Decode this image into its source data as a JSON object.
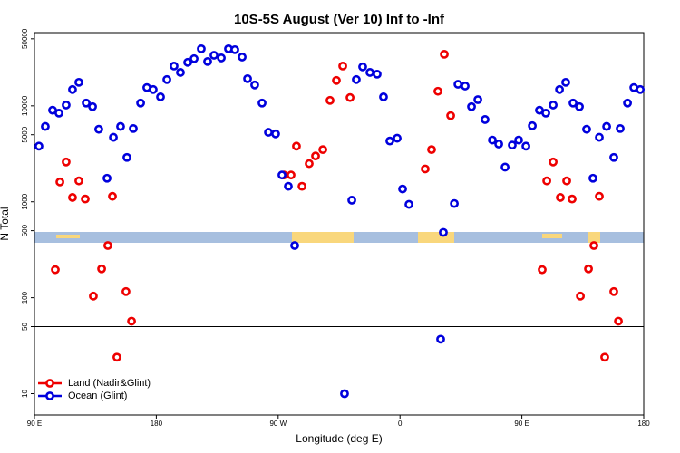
{
  "chart_data": {
    "type": "scatter",
    "title": "10S-5S August (Ver 10)   Inf to -Inf",
    "x_label": "Longitude (deg E)",
    "y_label": "N Total",
    "log_y": true,
    "xlim": [
      90,
      540
    ],
    "ylim": [
      6,
      58000
    ],
    "xticks": [
      {
        "value": 90,
        "label": "90 E"
      },
      180,
      {
        "value": 270,
        "label": "90 W"
      },
      0,
      {
        "value": 450,
        "label": "90 E"
      },
      {
        "value": 540,
        "label": "180"
      }
    ],
    "yticks": [
      10,
      50,
      100,
      500,
      1000,
      5000,
      10000,
      50000
    ],
    "reference_line": 50,
    "legend": "bottom-left",
    "series": [
      {
        "name": "Land (Nadir&Glint)",
        "color": "#ee0000",
        "x": [
          105.4,
          108.8,
          113.4,
          118.1,
          122.8,
          127.5,
          133.5,
          139.6,
          144.2,
          147.6,
          150.9,
          157.6,
          161.7,
          274.2,
          279.5,
          283.5,
          287.6,
          292.9,
          297.6,
          303.0,
          308.3,
          313.0,
          317.7,
          323.1,
          378.6,
          383.3,
          388.0,
          392.7,
          397.4,
          465.0,
          468.4,
          473.1,
          478.4,
          483.1,
          487.1,
          493.2,
          499.2,
          503.2,
          507.2,
          511.2,
          517.9,
          521.3
        ],
        "values": [
          196,
          1610,
          2600,
          1110,
          1650,
          1070,
          104,
          200,
          350,
          1140,
          24,
          116,
          57,
          1900,
          1900,
          3800,
          1450,
          2500,
          3000,
          3500,
          11400,
          18400,
          26000,
          12200,
          2200,
          3500,
          14200,
          34500,
          7900,
          196,
          1650,
          2600,
          1110,
          1650,
          1070,
          104,
          200,
          350,
          1140,
          24,
          116,
          57
        ]
      },
      {
        "name": "Ocean (Glint)",
        "color": "#0000dd",
        "x": [
          93.3,
          98.0,
          103.4,
          108.1,
          113.4,
          118.1,
          122.8,
          128.2,
          132.9,
          137.5,
          143.6,
          148.3,
          153.6,
          158.3,
          163.0,
          168.4,
          173.0,
          177.7,
          183.1,
          187.8,
          193.1,
          197.8,
          203.2,
          207.9,
          213.2,
          217.9,
          222.6,
          228.0,
          233.3,
          238.0,
          243.4,
          247.4,
          252.7,
          258.1,
          262.8,
          268.1,
          272.8,
          277.5,
          282.2,
          319.0,
          324.4,
          327.7,
          332.4,
          337.8,
          343.1,
          347.8,
          352.5,
          357.9,
          361.9,
          366.6,
          390.0,
          392.0,
          400.1,
          402.8,
          408.1,
          412.8,
          417.5,
          422.8,
          428.2,
          432.9,
          437.6,
          442.9,
          447.6,
          453.0,
          457.7,
          463.0,
          467.7,
          473.1,
          477.8,
          482.4,
          487.8,
          492.5,
          497.8,
          502.5,
          507.2,
          512.6,
          517.9,
          522.6,
          528.0,
          532.7,
          537.4
        ],
        "values": [
          3800,
          6100,
          9000,
          8400,
          10200,
          14800,
          17600,
          10700,
          9800,
          5700,
          1760,
          4700,
          6100,
          2900,
          5800,
          10700,
          15500,
          14800,
          12400,
          18800,
          26000,
          22300,
          28400,
          31000,
          39300,
          29000,
          33700,
          31600,
          39300,
          38500,
          32300,
          19200,
          16500,
          10700,
          5300,
          5100,
          1900,
          1450,
          350,
          10,
          1040,
          18800,
          25500,
          22300,
          21400,
          12400,
          4300,
          4600,
          1360,
          940,
          37,
          480,
          960,
          16800,
          16100,
          9800,
          11600,
          7200,
          4400,
          4000,
          2300,
          3900,
          4400,
          3800,
          6200,
          9000,
          8400,
          10200,
          14800,
          17600,
          10700,
          9800,
          5700,
          1760,
          4700,
          6100,
          2900,
          5800,
          10700,
          15500,
          14800
        ]
      }
    ]
  }
}
